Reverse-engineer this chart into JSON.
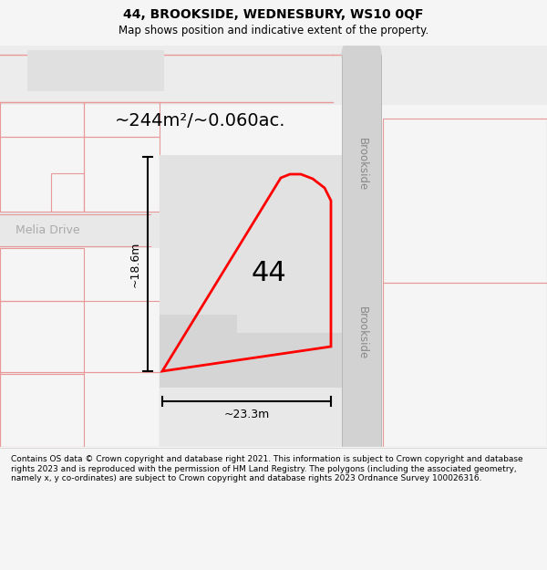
{
  "title_line1": "44, BROOKSIDE, WEDNESBURY, WS10 0QF",
  "title_line2": "Map shows position and indicative extent of the property.",
  "footer_text": "Contains OS data © Crown copyright and database right 2021. This information is subject to Crown copyright and database rights 2023 and is reproduced with the permission of HM Land Registry. The polygons (including the associated geometry, namely x, y co-ordinates) are subject to Crown copyright and database rights 2023 Ordnance Survey 100026316.",
  "area_text": "~244m²/~0.060ac.",
  "number_label": "44",
  "dim_width": "~23.3m",
  "dim_height": "~18.6m",
  "street_name_top": "Brookside",
  "street_name_bottom": "Brookside",
  "road_name_left": "Melia Drive",
  "bg_color": "#f5f5f5",
  "map_bg": "#f0eeee",
  "property_fill": "#e2e2e2",
  "property_outline": "#ff0000",
  "road_fill": "#d0d0d0",
  "road_outline": "#b0b0b0",
  "pink_line": "#e89898",
  "pink_fill": "#f5d8d8"
}
